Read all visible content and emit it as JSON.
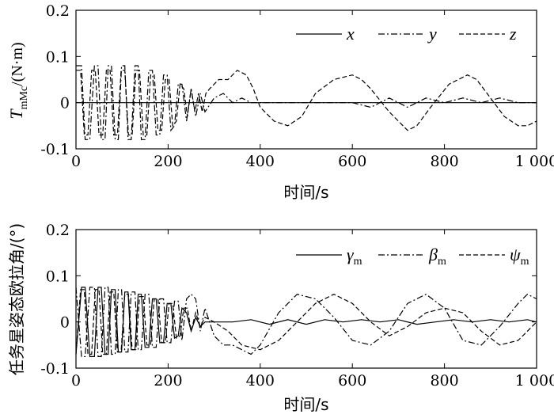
{
  "chart_data": [
    {
      "type": "line",
      "ylabel_main": "T",
      "ylabel_sub": "mMc",
      "ylabel_unit": "/(N·m)",
      "xlabel": "时间/s",
      "xlim": [
        0,
        1000
      ],
      "ylim": [
        -0.1,
        0.2
      ],
      "xticks": [
        0,
        200,
        400,
        600,
        800,
        1000
      ],
      "xtick_labels": [
        "0",
        "200",
        "400",
        "600",
        "800",
        "1 000"
      ],
      "yticks": [
        -0.1,
        0,
        0.1,
        0.2
      ],
      "ytick_labels": [
        "-0.1",
        "0",
        "0.1",
        "0.2"
      ],
      "legend_position": "top-right",
      "series": [
        {
          "name": "x",
          "style": "solid",
          "x": [
            0,
            1000
          ],
          "y": [
            0,
            0
          ]
        },
        {
          "name": "y",
          "style": "dashdot",
          "x": [
            0,
            12,
            20,
            30,
            40,
            48,
            55,
            63,
            70,
            77,
            85,
            92,
            99,
            106,
            113,
            120,
            128,
            135,
            142,
            150,
            158,
            166,
            174,
            182,
            190,
            198,
            206,
            214,
            222,
            230,
            240,
            250,
            260,
            270,
            280,
            300,
            320,
            340,
            360,
            380,
            400,
            440,
            480,
            520,
            560,
            600,
            640,
            680,
            720,
            760,
            800,
            840,
            880,
            920,
            960,
            1000
          ],
          "y": [
            0.08,
            0.08,
            -0.08,
            -0.08,
            0.08,
            0.08,
            -0.08,
            -0.08,
            0.08,
            0.08,
            -0.08,
            -0.08,
            0.08,
            0.08,
            -0.08,
            -0.08,
            0.08,
            0.08,
            -0.08,
            -0.08,
            0.07,
            0.07,
            -0.07,
            -0.07,
            0.06,
            0.06,
            -0.06,
            -0.05,
            0.04,
            0.04,
            -0.04,
            0.03,
            -0.03,
            0.02,
            -0.02,
            0.01,
            0.02,
            0.0,
            0.01,
            0.0,
            0.0,
            0.0,
            0.0,
            0.0,
            0.0,
            0.0,
            -0.01,
            0.01,
            -0.01,
            0.01,
            0.0,
            0.01,
            0.0,
            0.01,
            0.0,
            0.0
          ]
        },
        {
          "name": "z",
          "style": "dashed",
          "x": [
            0,
            10,
            18,
            26,
            34,
            42,
            50,
            58,
            66,
            74,
            82,
            90,
            98,
            106,
            114,
            122,
            130,
            138,
            146,
            154,
            162,
            170,
            178,
            186,
            194,
            202,
            210,
            218,
            226,
            234,
            242,
            250,
            258,
            266,
            274,
            282,
            290,
            310,
            330,
            350,
            370,
            385,
            400,
            430,
            460,
            490,
            520,
            560,
            600,
            620,
            640,
            680,
            720,
            740,
            770,
            810,
            850,
            870,
            900,
            930,
            960,
            980,
            1000
          ],
          "y": [
            0.07,
            0.07,
            -0.07,
            -0.07,
            0.07,
            0.07,
            -0.07,
            -0.07,
            0.07,
            0.07,
            -0.07,
            -0.07,
            0.07,
            0.07,
            -0.07,
            -0.07,
            0.07,
            0.07,
            -0.07,
            -0.07,
            0.06,
            0.06,
            -0.06,
            -0.06,
            0.05,
            0.05,
            -0.05,
            -0.04,
            0.04,
            0.03,
            -0.03,
            0.03,
            -0.02,
            0.02,
            -0.02,
            0.02,
            0.03,
            0.05,
            0.05,
            0.07,
            0.06,
            0.03,
            -0.01,
            -0.04,
            -0.05,
            -0.03,
            0.02,
            0.05,
            0.06,
            0.05,
            0.03,
            -0.02,
            -0.06,
            -0.05,
            -0.01,
            0.04,
            0.06,
            0.05,
            0.01,
            -0.03,
            -0.05,
            -0.05,
            -0.04
          ]
        }
      ]
    },
    {
      "type": "line",
      "ylabel": "任务星姿态欧拉角/(°)",
      "xlabel": "时间/s",
      "xlim": [
        0,
        1000
      ],
      "ylim": [
        -0.1,
        0.2
      ],
      "xticks": [
        0,
        200,
        400,
        600,
        800,
        1000
      ],
      "xtick_labels": [
        "0",
        "200",
        "400",
        "600",
        "800",
        "1 000"
      ],
      "yticks": [
        -0.1,
        0,
        0.1,
        0.2
      ],
      "ytick_labels": [
        "-0.1",
        "0",
        "0.1",
        "0.2"
      ],
      "legend_position": "top-right",
      "series": [
        {
          "name": "γ",
          "sub": "m",
          "style": "solid",
          "x": [
            0,
            12,
            20,
            30,
            40,
            48,
            55,
            63,
            70,
            77,
            85,
            92,
            99,
            106,
            113,
            120,
            128,
            135,
            142,
            150,
            158,
            166,
            174,
            182,
            190,
            198,
            206,
            214,
            222,
            230,
            240,
            250,
            260,
            270,
            280,
            300,
            340,
            380,
            420,
            460,
            500,
            540,
            580,
            620,
            660,
            700,
            740,
            780,
            820,
            860,
            900,
            940,
            980,
            1000
          ],
          "y": [
            -0.07,
            0.075,
            0.075,
            -0.075,
            -0.075,
            0.075,
            0.075,
            -0.07,
            -0.07,
            0.07,
            0.07,
            -0.065,
            -0.065,
            0.065,
            0.065,
            -0.06,
            -0.06,
            0.06,
            0.06,
            -0.055,
            -0.055,
            0.05,
            0.05,
            -0.045,
            -0.045,
            0.04,
            0.04,
            -0.035,
            -0.03,
            0.03,
            0.02,
            -0.02,
            0.01,
            -0.01,
            0.0,
            0.0,
            0.0,
            0.005,
            -0.005,
            0.005,
            -0.005,
            0.005,
            0.0,
            0.005,
            0.0,
            0.005,
            -0.005,
            0.0,
            0.005,
            0.0,
            0.005,
            0.0,
            0.005,
            0.0
          ]
        },
        {
          "name": "β",
          "sub": "m",
          "style": "dashdot",
          "x": [
            0,
            12,
            20,
            30,
            40,
            48,
            55,
            63,
            70,
            77,
            85,
            92,
            99,
            106,
            113,
            120,
            128,
            135,
            142,
            150,
            158,
            166,
            174,
            182,
            190,
            198,
            206,
            214,
            222,
            230,
            240,
            250,
            260,
            270,
            280,
            290,
            300,
            320,
            340,
            360,
            380,
            400,
            440,
            480,
            520,
            560,
            600,
            640,
            680,
            720,
            760,
            800,
            840,
            880,
            920,
            960,
            980,
            1000
          ],
          "y": [
            0.075,
            -0.075,
            -0.075,
            0.075,
            0.075,
            -0.075,
            -0.075,
            0.075,
            0.075,
            -0.07,
            -0.07,
            0.07,
            0.07,
            -0.065,
            -0.065,
            0.065,
            0.065,
            -0.06,
            -0.06,
            0.06,
            0.06,
            -0.055,
            -0.055,
            0.05,
            0.05,
            -0.045,
            -0.045,
            0.045,
            0.045,
            -0.04,
            0.05,
            0.06,
            0.05,
            -0.02,
            0.03,
            0.0,
            -0.03,
            -0.05,
            -0.05,
            -0.06,
            -0.07,
            -0.05,
            0.02,
            0.06,
            0.05,
            0.01,
            -0.04,
            -0.05,
            -0.02,
            0.04,
            0.06,
            0.03,
            -0.04,
            -0.05,
            -0.01,
            0.04,
            0.06,
            0.05
          ]
        },
        {
          "name": "ψ",
          "sub": "m",
          "style": "dashed",
          "x": [
            0,
            10,
            18,
            26,
            34,
            42,
            50,
            58,
            66,
            74,
            82,
            90,
            98,
            106,
            114,
            122,
            130,
            138,
            146,
            154,
            162,
            170,
            178,
            186,
            194,
            202,
            210,
            218,
            226,
            234,
            242,
            250,
            260,
            270,
            280,
            300,
            330,
            360,
            400,
            440,
            480,
            520,
            560,
            600,
            640,
            680,
            720,
            760,
            800,
            840,
            880,
            920,
            960,
            1000
          ],
          "y": [
            -0.07,
            0.07,
            0.07,
            -0.07,
            -0.07,
            0.07,
            0.07,
            -0.07,
            -0.07,
            0.065,
            0.065,
            -0.065,
            -0.065,
            0.06,
            0.06,
            -0.06,
            -0.06,
            0.055,
            0.055,
            -0.05,
            -0.05,
            0.05,
            0.05,
            -0.045,
            -0.045,
            0.04,
            0.04,
            -0.035,
            -0.03,
            0.03,
            0.03,
            -0.02,
            0.02,
            -0.01,
            0.01,
            0.0,
            -0.02,
            -0.05,
            -0.06,
            -0.04,
            0.0,
            0.04,
            0.06,
            0.04,
            0.0,
            -0.03,
            -0.01,
            0.02,
            0.03,
            0.02,
            -0.02,
            -0.05,
            -0.04,
            0.0
          ]
        }
      ]
    }
  ]
}
